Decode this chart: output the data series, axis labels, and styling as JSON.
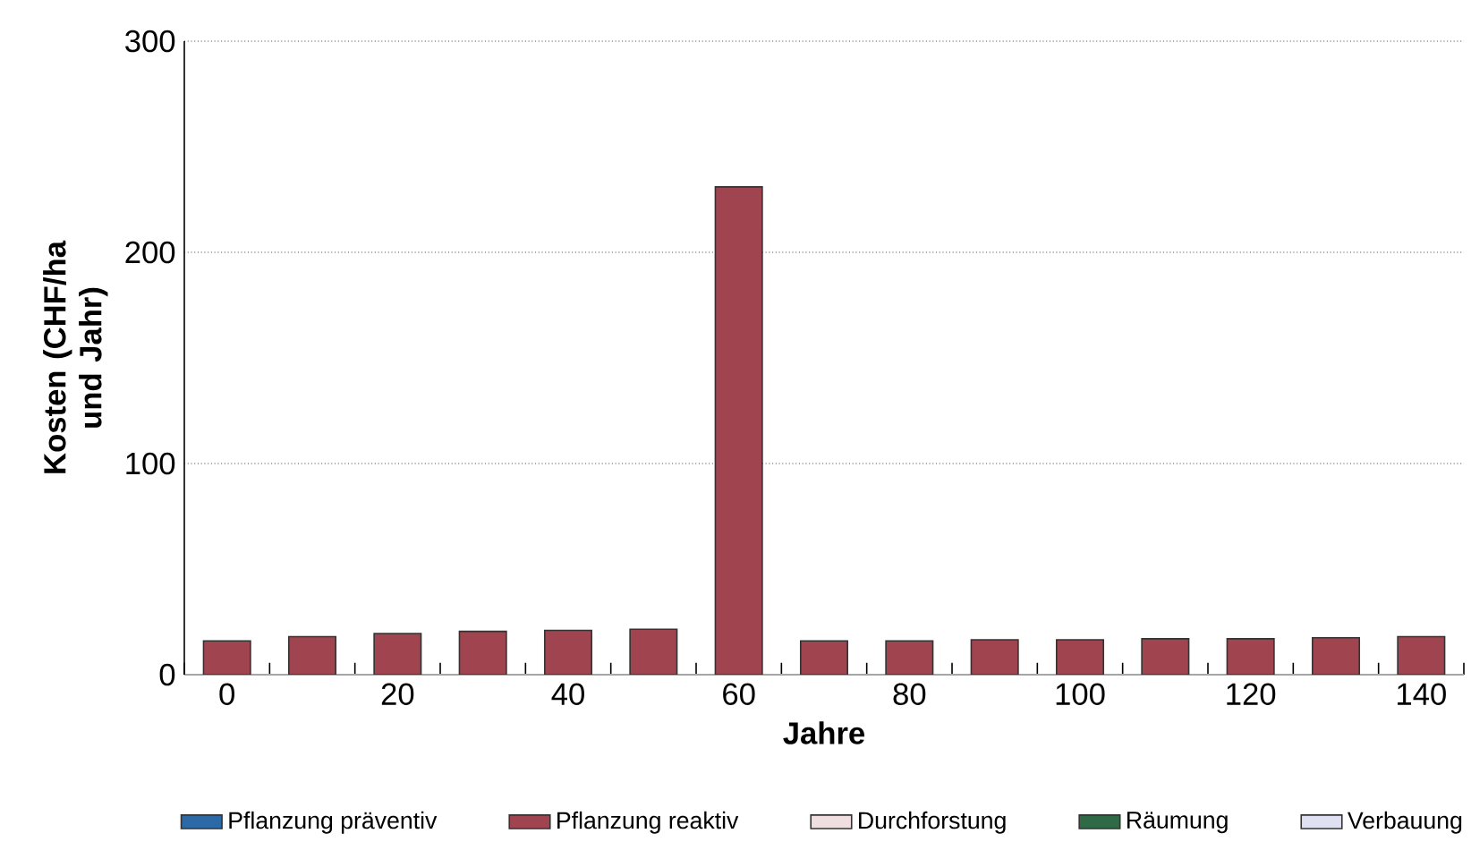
{
  "chart_data": {
    "type": "bar",
    "stacked": true,
    "xlabel": "Jahre",
    "ylabel": "Kosten (CHF/ha und Jahr)",
    "categories": [
      "0",
      null,
      "20",
      null,
      "40",
      null,
      "60",
      null,
      "80",
      null,
      "100",
      null,
      "120",
      null,
      "140"
    ],
    "series": [
      {
        "name": "Pflanzung präventiv",
        "color": "#2b6aa6",
        "values": [
          null,
          null,
          null,
          null,
          null,
          null,
          null,
          null,
          null,
          null,
          null,
          null,
          null,
          null,
          null
        ]
      },
      {
        "name": "Pflanzung reaktiv",
        "color": "#a04550",
        "values": [
          16,
          18,
          19.5,
          20.5,
          21,
          21.5,
          231,
          16,
          16,
          16.5,
          16.5,
          17,
          17,
          17.5,
          18
        ]
      },
      {
        "name": "Durchforstung",
        "color": "#f0dfe0",
        "values": [
          null,
          null,
          null,
          null,
          null,
          null,
          null,
          null,
          null,
          null,
          null,
          null,
          null,
          null,
          null
        ]
      },
      {
        "name": "Räumung",
        "color": "#2f6a46",
        "values": [
          null,
          null,
          null,
          null,
          null,
          null,
          null,
          null,
          null,
          null,
          null,
          null,
          null,
          null,
          null
        ]
      },
      {
        "name": "Verbauung",
        "color": "#dfe0f1",
        "values": [
          null,
          null,
          null,
          null,
          null,
          null,
          null,
          null,
          null,
          null,
          null,
          null,
          null,
          null,
          null
        ]
      }
    ],
    "ylim": [
      0,
      300
    ],
    "yticks": [
      0,
      100,
      200,
      300
    ],
    "grid": "y",
    "legend": "bottom"
  }
}
